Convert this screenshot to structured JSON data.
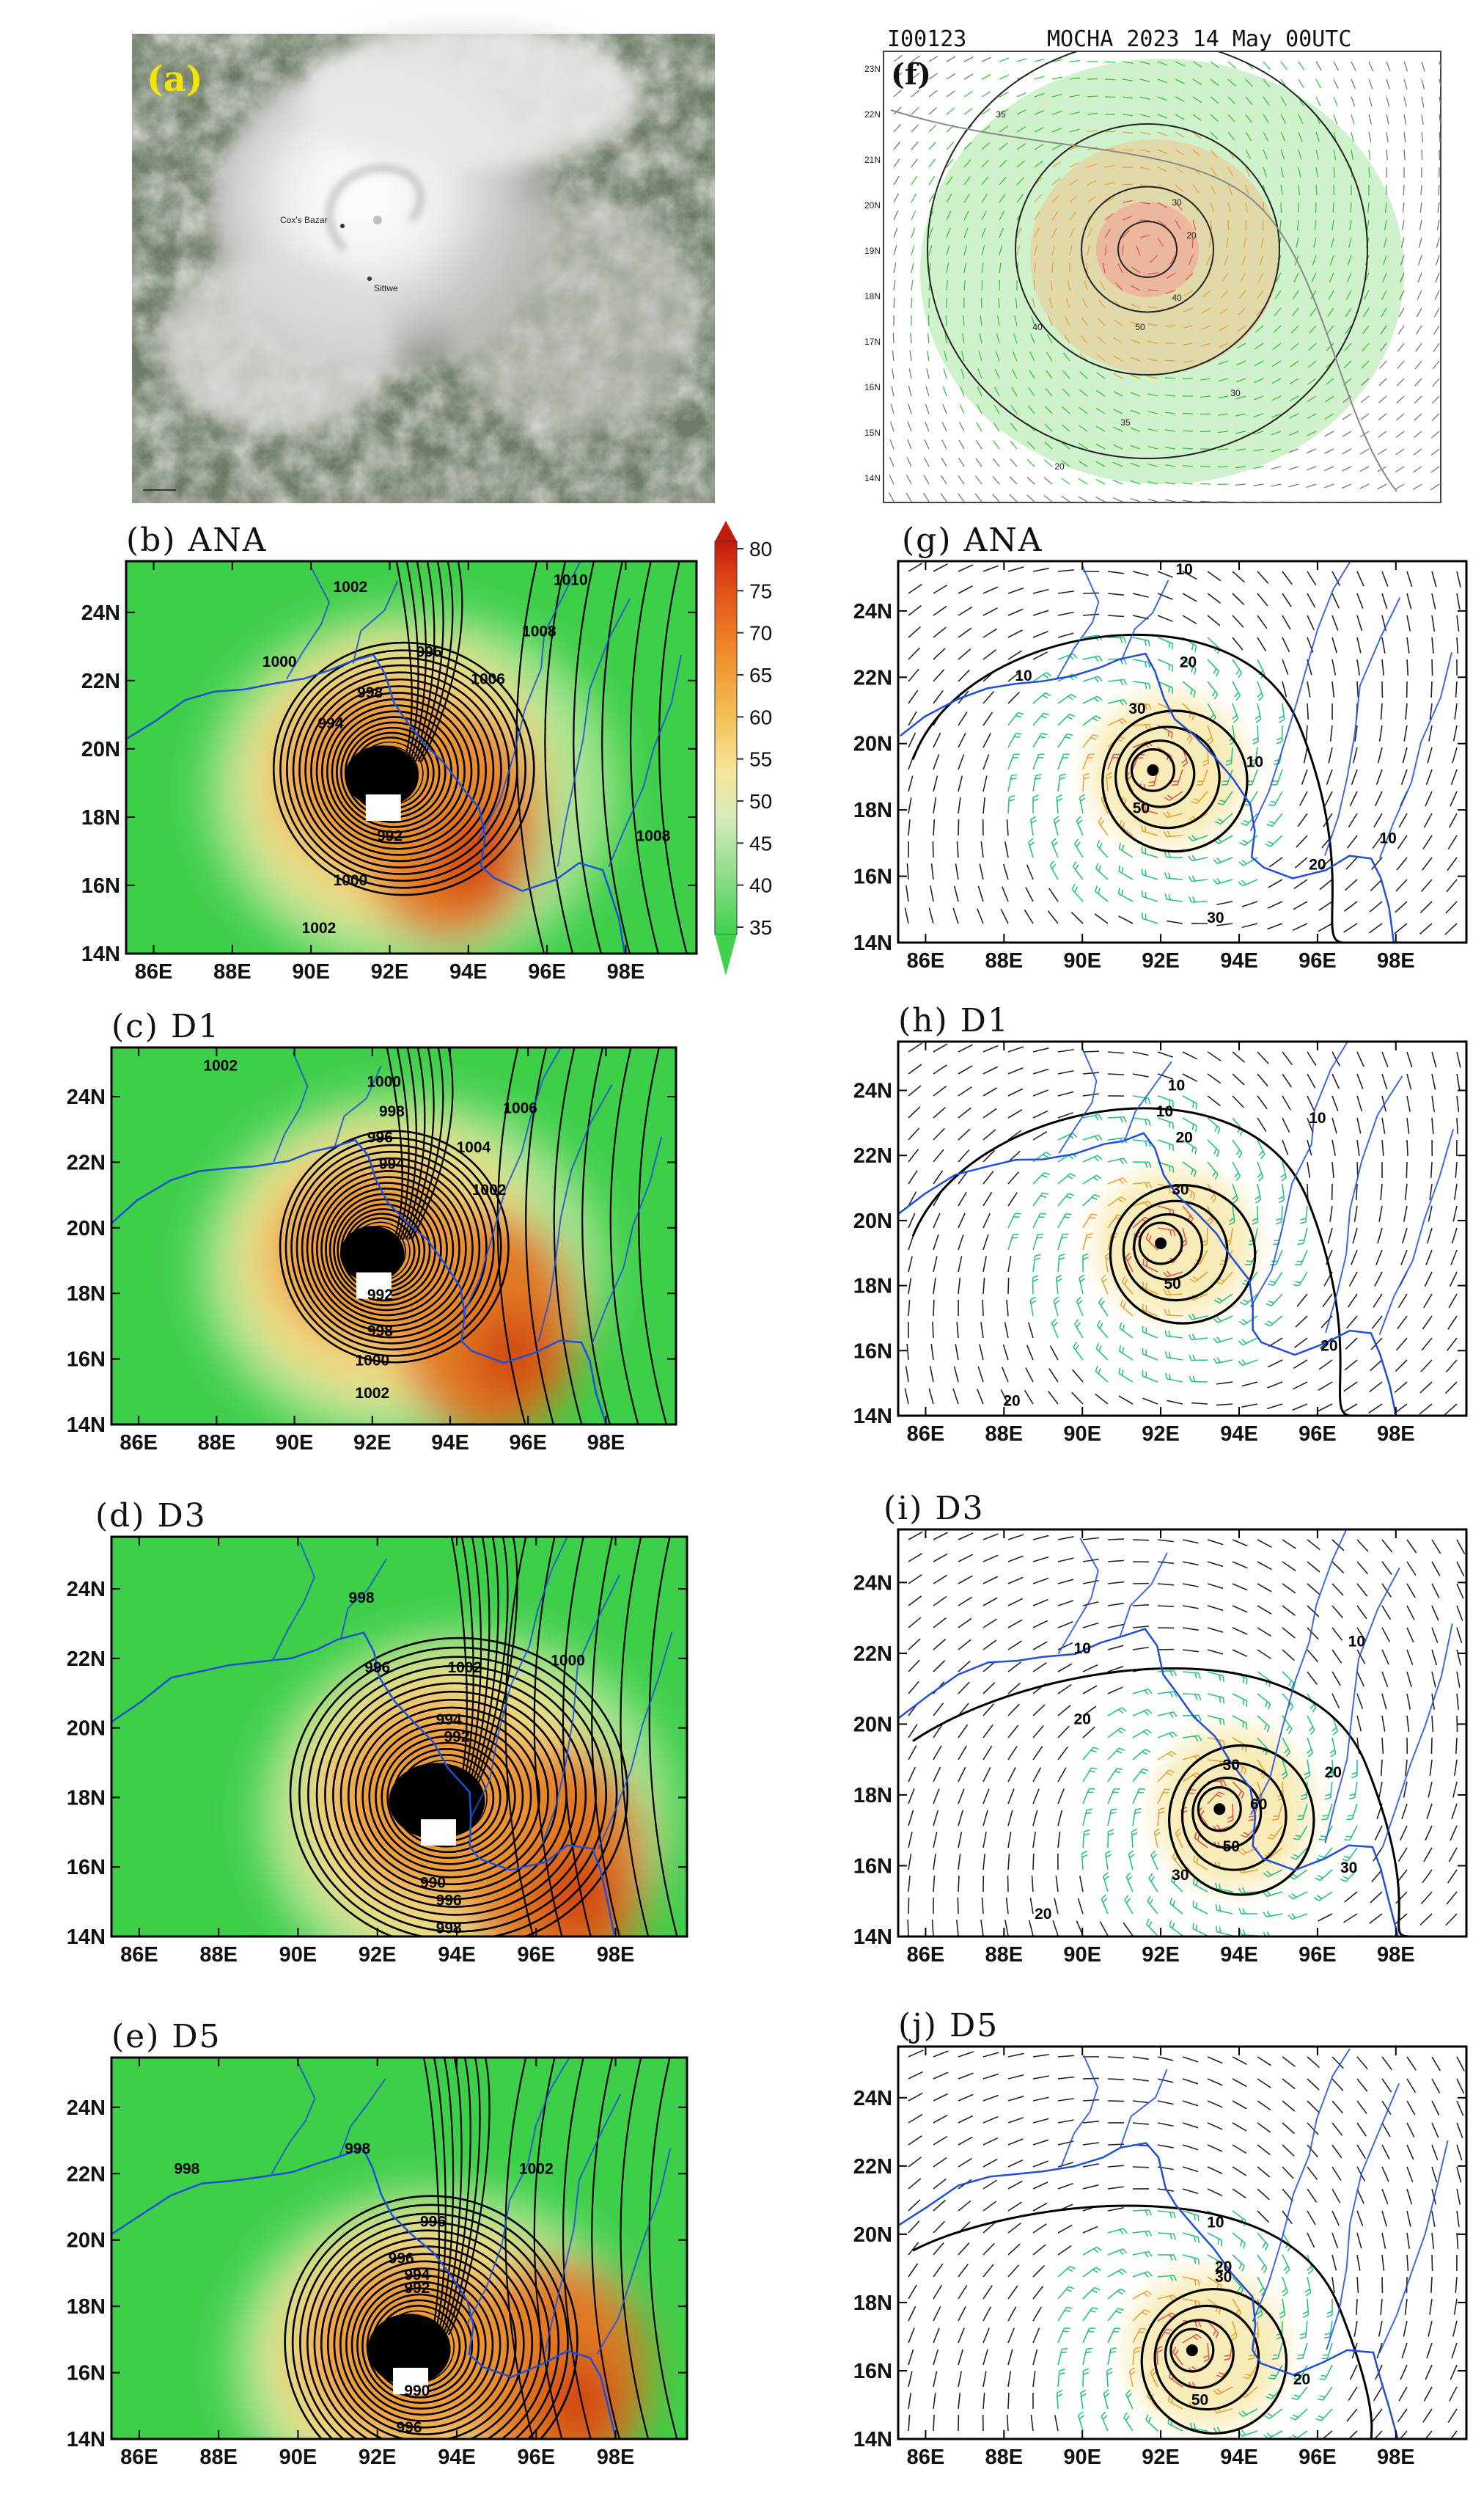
{
  "panel_a": {
    "label": "(a)",
    "places": [
      "Cox's Bazar",
      "Sittwe"
    ]
  },
  "panel_f": {
    "label": "(f)",
    "header_id": "I00123",
    "header_title": "MOCHA 2023 14 May 00UTC",
    "lat_labels": [
      "23N",
      "22N",
      "21N",
      "20N",
      "19N",
      "18N",
      "17N",
      "16N",
      "15N",
      "14N"
    ],
    "contour_labels": [
      "30",
      "40",
      "50",
      "35",
      "30",
      "20",
      "20",
      "35",
      "40"
    ]
  },
  "colorbar": {
    "ticks": [
      "80",
      "75",
      "70",
      "65",
      "60",
      "55",
      "50",
      "45",
      "40",
      "35"
    ]
  },
  "axes": {
    "lon_labels": [
      "86E",
      "88E",
      "90E",
      "92E",
      "94E",
      "96E",
      "98E"
    ],
    "lat_labels": [
      "24N",
      "22N",
      "20N",
      "18N",
      "16N",
      "14N"
    ]
  },
  "pressure_panels": [
    {
      "label": "(b) ANA",
      "center_lonlat": [
        91.8,
        19.2
      ],
      "radius_deg": [
        1.7,
        1.3
      ],
      "warm_core": [
        93.5,
        17.8
      ],
      "contour_labels": [
        {
          "text": "1002",
          "lon": 91.0,
          "lat": 24.6
        },
        {
          "text": "1010",
          "lon": 96.6,
          "lat": 24.8
        },
        {
          "text": "1008",
          "lon": 95.8,
          "lat": 23.3
        },
        {
          "text": "1000",
          "lon": 89.2,
          "lat": 22.4
        },
        {
          "text": "996",
          "lon": 93.0,
          "lat": 22.7
        },
        {
          "text": "1006",
          "lon": 94.5,
          "lat": 21.9
        },
        {
          "text": "998",
          "lon": 91.5,
          "lat": 21.5
        },
        {
          "text": "994",
          "lon": 90.5,
          "lat": 20.6
        },
        {
          "text": "992",
          "lon": 92.0,
          "lat": 17.3
        },
        {
          "text": "1008",
          "lon": 98.7,
          "lat": 17.3
        },
        {
          "text": "1000",
          "lon": 91.0,
          "lat": 16.0
        },
        {
          "text": "1002",
          "lon": 90.2,
          "lat": 14.6
        }
      ]
    },
    {
      "label": "(c) D1",
      "center_lonlat": [
        92.0,
        19.2
      ],
      "radius_deg": [
        1.5,
        1.2
      ],
      "warm_core": [
        95.0,
        17.0
      ],
      "contour_labels": [
        {
          "text": "1002",
          "lon": 88.1,
          "lat": 24.8
        },
        {
          "text": "1000",
          "lon": 92.3,
          "lat": 24.3
        },
        {
          "text": "998",
          "lon": 92.5,
          "lat": 23.4
        },
        {
          "text": "1006",
          "lon": 95.8,
          "lat": 23.5
        },
        {
          "text": "996",
          "lon": 92.2,
          "lat": 22.6
        },
        {
          "text": "1004",
          "lon": 94.6,
          "lat": 22.3
        },
        {
          "text": "994",
          "lon": 92.5,
          "lat": 21.8
        },
        {
          "text": "1002",
          "lon": 95.0,
          "lat": 21.0
        },
        {
          "text": "992",
          "lon": 92.2,
          "lat": 17.8
        },
        {
          "text": "998",
          "lon": 92.2,
          "lat": 16.7
        },
        {
          "text": "1000",
          "lon": 92.0,
          "lat": 15.8
        },
        {
          "text": "1002",
          "lon": 92.0,
          "lat": 14.8
        }
      ]
    },
    {
      "label": "(d) D3",
      "center_lonlat": [
        93.5,
        17.9
      ],
      "radius_deg": [
        2.2,
        1.6
      ],
      "warm_core": [
        96.5,
        16.0
      ],
      "contour_labels": [
        {
          "text": "998",
          "lon": 91.6,
          "lat": 23.6
        },
        {
          "text": "996",
          "lon": 92.0,
          "lat": 21.6
        },
        {
          "text": "1002",
          "lon": 94.2,
          "lat": 21.6
        },
        {
          "text": "1000",
          "lon": 96.8,
          "lat": 21.8
        },
        {
          "text": "994",
          "lon": 93.8,
          "lat": 20.1
        },
        {
          "text": "992",
          "lon": 94.0,
          "lat": 19.6
        },
        {
          "text": "990",
          "lon": 93.4,
          "lat": 15.4
        },
        {
          "text": "996",
          "lon": 93.8,
          "lat": 14.9
        },
        {
          "text": "998",
          "lon": 93.8,
          "lat": 14.1
        }
      ]
    },
    {
      "label": "(e) D5",
      "center_lonlat": [
        92.8,
        16.7
      ],
      "radius_deg": [
        1.9,
        1.5
      ],
      "warm_core": [
        96.5,
        16.0
      ],
      "contour_labels": [
        {
          "text": "998",
          "lon": 87.2,
          "lat": 22.0
        },
        {
          "text": "998",
          "lon": 91.5,
          "lat": 22.6
        },
        {
          "text": "1002",
          "lon": 96.0,
          "lat": 22.0
        },
        {
          "text": "996",
          "lon": 93.4,
          "lat": 20.4
        },
        {
          "text": "996",
          "lon": 92.6,
          "lat": 19.3
        },
        {
          "text": "994",
          "lon": 93.0,
          "lat": 18.8
        },
        {
          "text": "992",
          "lon": 93.0,
          "lat": 18.4
        },
        {
          "text": "990",
          "lon": 93.0,
          "lat": 15.3
        },
        {
          "text": "996",
          "lon": 92.8,
          "lat": 14.2
        }
      ]
    }
  ],
  "wind_panels": [
    {
      "label": "(g) ANA",
      "center_lonlat": [
        91.8,
        19.2
      ],
      "contour_labels": [
        {
          "text": "10",
          "lon": 92.6,
          "lat": 25.1
        },
        {
          "text": "20",
          "lon": 92.7,
          "lat": 22.3
        },
        {
          "text": "10",
          "lon": 88.5,
          "lat": 21.9
        },
        {
          "text": "30",
          "lon": 91.4,
          "lat": 20.9
        },
        {
          "text": "10",
          "lon": 94.4,
          "lat": 19.3
        },
        {
          "text": "50",
          "lon": 91.5,
          "lat": 17.9
        },
        {
          "text": "10",
          "lon": 97.8,
          "lat": 17.0
        },
        {
          "text": "20",
          "lon": 96.0,
          "lat": 16.2
        },
        {
          "text": "30",
          "lon": 93.4,
          "lat": 14.6
        }
      ]
    },
    {
      "label": "(h) D1",
      "center_lonlat": [
        92.0,
        19.3
      ],
      "contour_labels": [
        {
          "text": "10",
          "lon": 92.4,
          "lat": 24.0
        },
        {
          "text": "10",
          "lon": 92.1,
          "lat": 23.2
        },
        {
          "text": "20",
          "lon": 92.6,
          "lat": 22.4
        },
        {
          "text": "10",
          "lon": 96.0,
          "lat": 23.0
        },
        {
          "text": "30",
          "lon": 92.5,
          "lat": 20.8
        },
        {
          "text": "50",
          "lon": 92.3,
          "lat": 17.9
        },
        {
          "text": "20",
          "lon": 96.3,
          "lat": 16.0
        },
        {
          "text": "20",
          "lon": 88.2,
          "lat": 14.3
        }
      ]
    },
    {
      "label": "(i) D3",
      "center_lonlat": [
        93.5,
        17.6
      ],
      "contour_labels": [
        {
          "text": "10",
          "lon": 90.0,
          "lat": 22.0
        },
        {
          "text": "10",
          "lon": 97.0,
          "lat": 22.2
        },
        {
          "text": "20",
          "lon": 90.0,
          "lat": 20.0
        },
        {
          "text": "30",
          "lon": 93.8,
          "lat": 18.7
        },
        {
          "text": "20",
          "lon": 96.4,
          "lat": 18.5
        },
        {
          "text": "60",
          "lon": 94.5,
          "lat": 17.6
        },
        {
          "text": "50",
          "lon": 93.8,
          "lat": 16.4
        },
        {
          "text": "30",
          "lon": 92.5,
          "lat": 15.6
        },
        {
          "text": "30",
          "lon": 96.8,
          "lat": 15.8
        },
        {
          "text": "20",
          "lon": 89.0,
          "lat": 14.5
        }
      ]
    },
    {
      "label": "(j) D5",
      "center_lonlat": [
        92.8,
        16.6
      ],
      "contour_labels": [
        {
          "text": "10",
          "lon": 93.4,
          "lat": 20.2
        },
        {
          "text": "30",
          "lon": 93.6,
          "lat": 18.6
        },
        {
          "text": "20",
          "lon": 93.6,
          "lat": 18.9
        },
        {
          "text": "20",
          "lon": 95.6,
          "lat": 15.6
        },
        {
          "text": "50",
          "lon": 93.0,
          "lat": 15.0
        }
      ]
    }
  ],
  "colors": {
    "fill_low": "#3ecf4a",
    "fill_mid": "#f3dc85",
    "fill_high": "#e0731a",
    "fill_max": "#cc2a0c",
    "coast": "#1f4fd6",
    "contour": "#000000"
  }
}
